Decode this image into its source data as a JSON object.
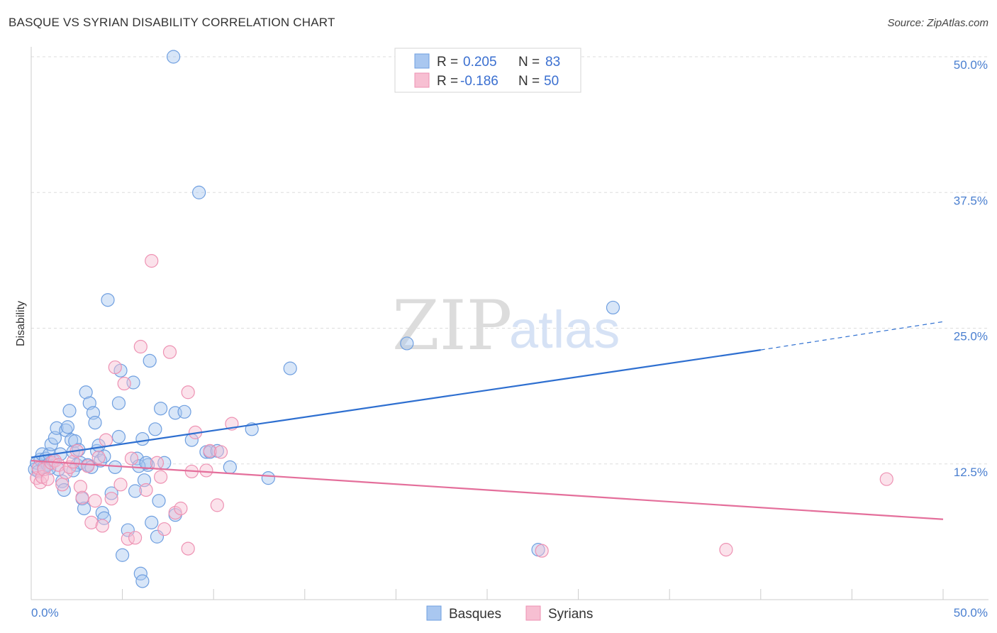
{
  "title": "BASQUE VS SYRIAN DISABILITY CORRELATION CHART",
  "source": "Source: ZipAtlas.com",
  "watermark": {
    "zip": "ZIP",
    "atlas": "atlas"
  },
  "colors": {
    "basque_fill": "#a9c7f0",
    "basque_stroke": "#6f9fe0",
    "basque_line": "#2e6fd0",
    "syrian_fill": "#f7bfd2",
    "syrian_stroke": "#ee92b3",
    "syrian_line": "#e46f9b",
    "grid": "#dddddd",
    "tick_label": "#4a7fd0"
  },
  "legend": {
    "row1": {
      "r_label": "R =",
      "r_value": "0.205",
      "n_label": "N =",
      "n_value": "83"
    },
    "row2": {
      "r_label": "R =",
      "r_value": "-0.186",
      "n_label": "N =",
      "n_value": "50"
    }
  },
  "bottom_legend": {
    "basques": "Basques",
    "syrians": "Syrians"
  },
  "chart_data": {
    "type": "scatter",
    "title": "BASQUE VS SYRIAN DISABILITY CORRELATION CHART",
    "xlabel": "",
    "ylabel": "Disability",
    "xlim": [
      0,
      50
    ],
    "ylim": [
      0,
      50
    ],
    "x_tick_labels": {
      "left": "0.0%",
      "right": "50.0%"
    },
    "y_ticks": [
      12.5,
      25.0,
      37.5,
      50.0
    ],
    "y_tick_labels": [
      "12.5%",
      "25.0%",
      "37.5%",
      "50.0%"
    ],
    "series": [
      {
        "name": "Basques",
        "R": 0.205,
        "N": 83,
        "trend": {
          "x0": 0,
          "y0": 13.1,
          "x1": 40,
          "y1": 23.0,
          "dashed_to_x": 50,
          "dashed_to_y": 25.6
        },
        "points": [
          [
            0.2,
            12.0
          ],
          [
            0.3,
            12.6
          ],
          [
            0.4,
            11.8
          ],
          [
            0.5,
            12.9
          ],
          [
            0.6,
            13.4
          ],
          [
            0.7,
            12.2
          ],
          [
            0.8,
            13.0
          ],
          [
            0.9,
            12.4
          ],
          [
            1.0,
            13.4
          ],
          [
            1.1,
            14.3
          ],
          [
            1.2,
            12.8
          ],
          [
            1.3,
            14.9
          ],
          [
            1.4,
            15.8
          ],
          [
            1.5,
            12.0
          ],
          [
            1.6,
            13.4
          ],
          [
            1.7,
            10.9
          ],
          [
            1.8,
            10.1
          ],
          [
            1.9,
            15.6
          ],
          [
            2.0,
            15.9
          ],
          [
            2.1,
            17.4
          ],
          [
            2.2,
            14.7
          ],
          [
            2.3,
            13.6
          ],
          [
            2.4,
            14.6
          ],
          [
            2.5,
            12.4
          ],
          [
            2.6,
            13.8
          ],
          [
            2.7,
            12.6
          ],
          [
            2.8,
            9.3
          ],
          [
            2.9,
            8.4
          ],
          [
            3.0,
            19.1
          ],
          [
            3.1,
            12.4
          ],
          [
            3.2,
            18.1
          ],
          [
            3.3,
            12.2
          ],
          [
            3.4,
            17.2
          ],
          [
            3.5,
            16.3
          ],
          [
            3.6,
            13.7
          ],
          [
            3.7,
            14.2
          ],
          [
            3.8,
            12.8
          ],
          [
            3.9,
            8.0
          ],
          [
            4.0,
            7.5
          ],
          [
            4.2,
            27.6
          ],
          [
            4.4,
            9.8
          ],
          [
            4.6,
            12.2
          ],
          [
            4.8,
            15.0
          ],
          [
            4.8,
            18.1
          ],
          [
            4.9,
            21.1
          ],
          [
            5.0,
            4.1
          ],
          [
            5.3,
            6.4
          ],
          [
            5.6,
            20.0
          ],
          [
            5.7,
            10.0
          ],
          [
            5.8,
            13.0
          ],
          [
            6.0,
            2.4
          ],
          [
            6.1,
            1.7
          ],
          [
            6.1,
            14.8
          ],
          [
            6.2,
            11.0
          ],
          [
            6.4,
            12.4
          ],
          [
            6.5,
            22.0
          ],
          [
            6.6,
            7.1
          ],
          [
            6.8,
            15.7
          ],
          [
            6.9,
            5.8
          ],
          [
            7.0,
            9.1
          ],
          [
            7.1,
            17.6
          ],
          [
            7.3,
            12.6
          ],
          [
            7.8,
            50.0
          ],
          [
            7.9,
            7.8
          ],
          [
            7.9,
            17.2
          ],
          [
            8.4,
            17.3
          ],
          [
            8.8,
            14.7
          ],
          [
            9.2,
            37.5
          ],
          [
            9.6,
            13.6
          ],
          [
            9.8,
            13.6
          ],
          [
            10.2,
            13.7
          ],
          [
            10.9,
            12.2
          ],
          [
            12.1,
            15.7
          ],
          [
            13.0,
            11.2
          ],
          [
            14.2,
            21.3
          ],
          [
            20.6,
            23.6
          ],
          [
            27.8,
            4.6
          ],
          [
            31.9,
            26.9
          ],
          [
            5.9,
            12.3
          ],
          [
            4.0,
            13.2
          ],
          [
            2.3,
            11.9
          ],
          [
            1.0,
            12.1
          ],
          [
            6.3,
            12.6
          ]
        ]
      },
      {
        "name": "Syrians",
        "R": -0.186,
        "N": 50,
        "trend": {
          "x0": 0,
          "y0": 12.8,
          "x1": 50,
          "y1": 7.4
        },
        "points": [
          [
            0.3,
            11.2
          ],
          [
            0.4,
            12.1
          ],
          [
            0.5,
            10.8
          ],
          [
            0.6,
            11.3
          ],
          [
            0.7,
            12.0
          ],
          [
            0.9,
            11.1
          ],
          [
            1.1,
            12.6
          ],
          [
            1.3,
            12.8
          ],
          [
            1.5,
            12.4
          ],
          [
            1.7,
            10.6
          ],
          [
            1.9,
            11.7
          ],
          [
            2.1,
            12.2
          ],
          [
            2.3,
            12.7
          ],
          [
            2.5,
            13.7
          ],
          [
            2.7,
            10.4
          ],
          [
            2.8,
            9.4
          ],
          [
            3.1,
            12.3
          ],
          [
            3.3,
            7.1
          ],
          [
            3.5,
            9.1
          ],
          [
            3.7,
            13.1
          ],
          [
            3.9,
            6.8
          ],
          [
            4.1,
            14.7
          ],
          [
            4.4,
            9.3
          ],
          [
            4.6,
            21.4
          ],
          [
            4.9,
            10.6
          ],
          [
            5.1,
            19.9
          ],
          [
            5.3,
            5.6
          ],
          [
            5.5,
            13.0
          ],
          [
            5.7,
            5.7
          ],
          [
            6.0,
            23.3
          ],
          [
            6.3,
            10.1
          ],
          [
            6.6,
            31.2
          ],
          [
            6.9,
            12.6
          ],
          [
            7.1,
            11.3
          ],
          [
            7.3,
            6.5
          ],
          [
            7.6,
            22.8
          ],
          [
            7.9,
            8.0
          ],
          [
            8.2,
            8.4
          ],
          [
            8.6,
            19.1
          ],
          [
            8.8,
            11.8
          ],
          [
            8.6,
            4.7
          ],
          [
            9.0,
            15.4
          ],
          [
            9.6,
            11.9
          ],
          [
            9.8,
            13.7
          ],
          [
            10.2,
            8.7
          ],
          [
            10.4,
            13.6
          ],
          [
            11.0,
            16.2
          ],
          [
            28.0,
            4.5
          ],
          [
            38.1,
            4.6
          ],
          [
            46.9,
            11.1
          ]
        ]
      }
    ]
  }
}
